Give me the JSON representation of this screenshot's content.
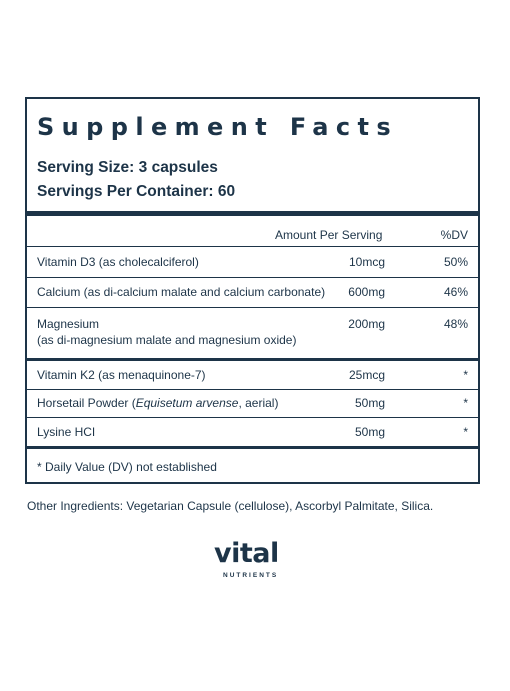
{
  "panel": {
    "title": "Supplement Facts",
    "serving_size": "Serving Size: 3 capsules",
    "servings_per_container": "Servings Per Container: 60",
    "header": {
      "amount": "Amount Per Serving",
      "dv": "%DV"
    },
    "rows": [
      {
        "name": "Vitamin D3 (as cholecalciferol)",
        "amount": "10mcg",
        "dv": "50%"
      },
      {
        "name": "Calcium (as di-calcium malate and calcium carbonate)",
        "amount": "600mg",
        "dv": "46%"
      },
      {
        "name": "Magnesium",
        "name_line2": "(as di-magnesium malate and magnesium oxide)",
        "amount": "200mg",
        "dv": "48%"
      },
      {
        "name": "Vitamin K2 (as menaquinone-7)",
        "amount": "25mcg",
        "dv": "*"
      },
      {
        "name_pre": "Horsetail Powder (",
        "name_italic": "Equisetum arvense",
        "name_post": ", aerial)",
        "amount": "50mg",
        "dv": "*"
      },
      {
        "name": "Lysine HCI",
        "amount": "50mg",
        "dv": "*"
      }
    ],
    "footnote": "* Daily Value (DV) not established"
  },
  "other_ingredients": "Other Ingredients: Vegetarian Capsule (cellulose), Ascorbyl Palmitate, Silica.",
  "brand": {
    "word": "vital",
    "sub": "NUTRIENTS"
  },
  "colors": {
    "ink": "#1d3448",
    "background": "#ffffff"
  }
}
